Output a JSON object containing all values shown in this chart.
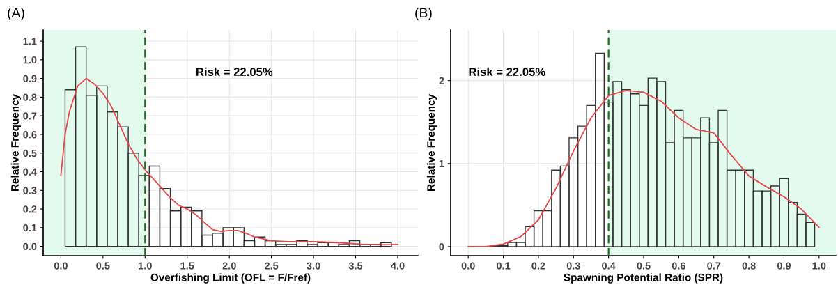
{
  "chart_data": [
    {
      "type": "histogram",
      "title": "(A)",
      "xlabel": "Overfishing Limit (OFL = F/Fref)",
      "ylabel": "Relative Frequency",
      "series": [
        {
          "color": "#333333",
          "bins": [
            0.05,
            0.175,
            0.3,
            0.425,
            0.55,
            0.675,
            0.8,
            0.925,
            1.05,
            1.175,
            1.3,
            1.425,
            1.55,
            1.675,
            1.8,
            1.925,
            2.05,
            2.175,
            2.3,
            2.425,
            2.55,
            2.675,
            2.8,
            2.925,
            3.05,
            3.175,
            3.3,
            3.425,
            3.55,
            3.675,
            3.8,
            3.925
          ],
          "values": [
            0.84,
            1.07,
            0.81,
            0.86,
            0.72,
            0.64,
            0.5,
            0.38,
            0.43,
            0.31,
            0.19,
            0.21,
            0.19,
            0.06,
            0.07,
            0.1,
            0.1,
            0.03,
            0.05,
            0.03,
            0.01,
            0.01,
            0.03,
            0.01,
            0.02,
            0.02,
            0.01,
            0.03,
            0.01,
            0.01,
            0.02
          ]
        },
        {
          "type": "line",
          "color": "#e8474a",
          "x": [
            0,
            0.05,
            0.1,
            0.2,
            0.3,
            0.4,
            0.5,
            0.6,
            0.7,
            0.8,
            0.9,
            1.0,
            1.1,
            1.2,
            1.3,
            1.4,
            1.5,
            1.6,
            1.7,
            1.8,
            1.9,
            2.0,
            2.1,
            2.2,
            2.3,
            2.4,
            2.5,
            2.7,
            3.0,
            3.3,
            3.6,
            3.8,
            4.0
          ],
          "values": [
            0.38,
            0.6,
            0.72,
            0.86,
            0.9,
            0.87,
            0.82,
            0.75,
            0.65,
            0.55,
            0.47,
            0.41,
            0.36,
            0.31,
            0.26,
            0.22,
            0.2,
            0.17,
            0.13,
            0.09,
            0.08,
            0.085,
            0.085,
            0.07,
            0.05,
            0.04,
            0.03,
            0.025,
            0.025,
            0.02,
            0.01,
            0.008,
            0.01
          ]
        }
      ],
      "xlim": [
        -0.21,
        4.24
      ],
      "ylim": [
        -0.05,
        1.16
      ],
      "xticks": [
        {
          "value": 0,
          "label": "0.0"
        },
        0.5,
        {
          "value": 1,
          "label": "1.0"
        },
        1.5,
        {
          "value": 2,
          "label": "2.0"
        },
        2.5,
        {
          "value": 3,
          "label": "3.0"
        },
        3.5,
        {
          "value": 4,
          "label": "4.0"
        }
      ],
      "yticks": [
        {
          "value": 0,
          "label": "0.0"
        },
        0.1,
        0.2,
        0.3,
        0.4,
        0.5,
        0.6,
        0.7,
        0.8,
        0.9,
        {
          "value": 1,
          "label": "1.0"
        },
        1.1
      ],
      "bands": [
        {
          "axis": "x",
          "from": -0.21,
          "to": 1.0,
          "color": "#e3fbee"
        }
      ],
      "ref_lines": [
        {
          "axis": "x",
          "value": 1.0,
          "color": "#1e6b1e",
          "line_style": "dashed"
        }
      ],
      "annotations": [
        "Risk = 22.05%"
      ],
      "grid": true
    },
    {
      "type": "histogram",
      "title": "(B)",
      "xlabel": "Spawning Potential Ratio (SPR)",
      "ylabel": "Relative Frequency",
      "series": [
        {
          "color": "#333333",
          "bins": [
            0.0125,
            0.0375,
            0.0625,
            0.0875,
            0.1125,
            0.1375,
            0.1625,
            0.1875,
            0.2125,
            0.2375,
            0.2625,
            0.2875,
            0.3125,
            0.3375,
            0.3625,
            0.3875,
            0.4125,
            0.4375,
            0.4625,
            0.4875,
            0.5125,
            0.5375,
            0.5625,
            0.5875,
            0.6125,
            0.6375,
            0.6625,
            0.6875,
            0.7125,
            0.7375,
            0.7625,
            0.7875,
            0.8125,
            0.8375,
            0.8625,
            0.8875,
            0.9125,
            0.9375,
            0.9625,
            0.9875
          ],
          "values": [
            0,
            0,
            0.01,
            0.01,
            0.05,
            0.05,
            0.24,
            0.43,
            0.43,
            0.92,
            0.97,
            1.31,
            1.45,
            1.7,
            2.33,
            1.74,
            1.99,
            1.89,
            1.84,
            1.7,
            2.03,
            1.99,
            1.25,
            1.64,
            1.31,
            1.31,
            1.55,
            1.25,
            1.64,
            0.92,
            0.92,
            0.92,
            0.67,
            0.67,
            0.73,
            0.82,
            0.53,
            0.39,
            0.29
          ]
        },
        {
          "type": "line",
          "color": "#e8474a",
          "x": [
            0,
            0.05,
            0.1,
            0.15,
            0.2,
            0.25,
            0.3,
            0.35,
            0.4,
            0.45,
            0.5,
            0.55,
            0.6,
            0.65,
            0.7,
            0.75,
            0.8,
            0.85,
            0.9,
            0.95,
            1.0
          ],
          "values": [
            0,
            0,
            0.03,
            0.12,
            0.32,
            0.7,
            1.15,
            1.55,
            1.82,
            1.88,
            1.86,
            1.75,
            1.55,
            1.41,
            1.37,
            1.1,
            0.85,
            0.72,
            0.6,
            0.45,
            0.23
          ]
        }
      ],
      "xlim": [
        -0.05,
        1.048
      ],
      "ylim": [
        -0.11,
        2.61
      ],
      "xticks": [
        {
          "value": 0,
          "label": "0.0"
        },
        0.1,
        0.2,
        0.3,
        0.4,
        0.5,
        0.6,
        0.7,
        0.8,
        0.9,
        {
          "value": 1,
          "label": "1.0"
        }
      ],
      "yticks": [
        0,
        1,
        2
      ],
      "bands": [
        {
          "axis": "x",
          "from": 0.4,
          "to": 1.048,
          "color": "#e3fbee"
        }
      ],
      "ref_lines": [
        {
          "axis": "x",
          "value": 0.4,
          "color": "#1e6b1e",
          "line_style": "dashed"
        }
      ],
      "annotations": [
        "Risk = 22.05%"
      ],
      "grid": true
    }
  ]
}
